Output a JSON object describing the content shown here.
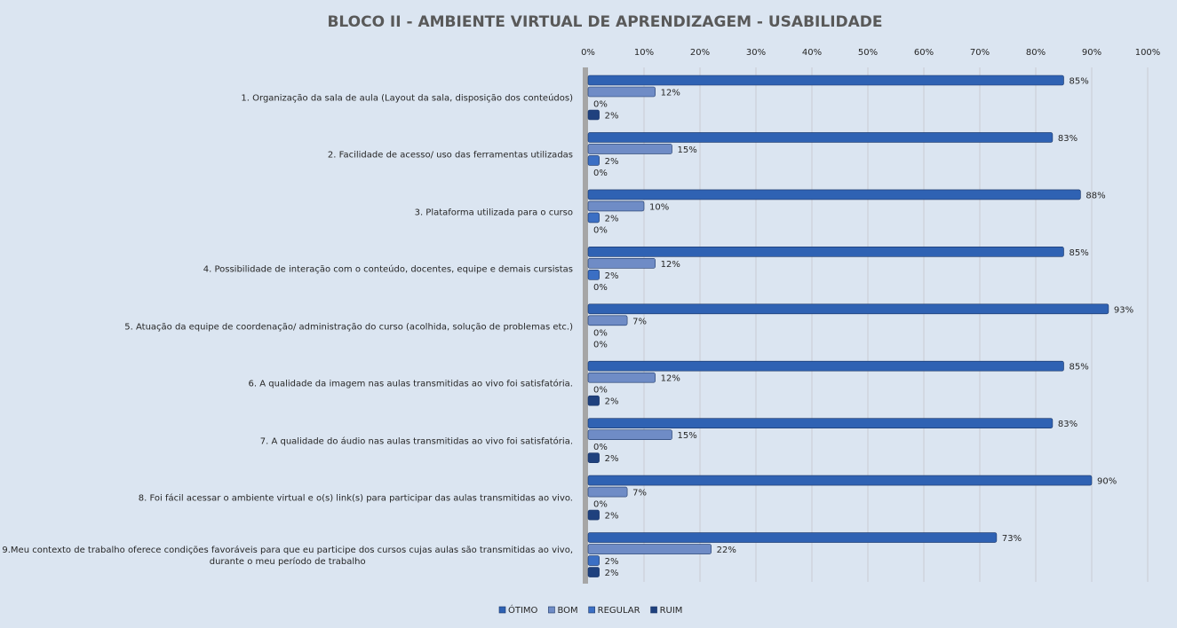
{
  "chart_data": {
    "type": "hbar",
    "title": "BLOCO II - AMBIENTE VIRTUAL DE APRENDIZAGEM - USABILIDADE",
    "categories": [
      "1. Organização da sala de aula (Layout da sala, disposição dos conteúdos)",
      "2. Facilidade de acesso/ uso das ferramentas utilizadas",
      "3. Plataforma utilizada para o curso",
      "4. Possibilidade de interação com o conteúdo, docentes, equipe e demais cursistas",
      "5. Atuação da equipe de coordenação/ administração do curso (acolhida, solução de problemas etc.)",
      "6. A qualidade da imagem nas aulas transmitidas ao vivo foi satisfatória.",
      "7. A qualidade do áudio nas aulas transmitidas ao vivo foi satisfatória.",
      "8. Foi fácil acessar o ambiente virtual e o(s) link(s) para participar das aulas transmitidas ao vivo.",
      "9.Meu contexto de trabalho oferece condições favoráveis para que eu participe dos cursos cujas aulas são transmitidas ao vivo,\ndurante o meu período de trabalho"
    ],
    "series": [
      {
        "name": "ÓTIMO",
        "color": "#2f62b3",
        "values": [
          85,
          83,
          88,
          85,
          93,
          85,
          83,
          90,
          73
        ],
        "value_labels": [
          "85%",
          "83%",
          "88%",
          "85%",
          "93%",
          "85%",
          "83%",
          "90%",
          "73%"
        ]
      },
      {
        "name": "BOM",
        "color": "#6f8cc6",
        "values": [
          12,
          15,
          10,
          12,
          7,
          12,
          15,
          7,
          22
        ],
        "value_labels": [
          "12%",
          "15%",
          "10%",
          "12%",
          "7%",
          "12%",
          "15%",
          "7%",
          "22%"
        ]
      },
      {
        "name": "REGULAR",
        "color": "#3b6fc4",
        "values": [
          0,
          2,
          2,
          2,
          0,
          0,
          0,
          0,
          2
        ],
        "value_labels": [
          "0%",
          "2%",
          "2%",
          "2%",
          "0%",
          "0%",
          "0%",
          "0%",
          "2%"
        ]
      },
      {
        "name": "RUIM",
        "color": "#1f417e",
        "values": [
          2,
          0,
          0,
          0,
          0,
          2,
          2,
          2,
          2
        ],
        "value_labels": [
          "2%",
          "0%",
          "0%",
          "0%",
          "0%",
          "2%",
          "2%",
          "2%",
          "2%"
        ]
      }
    ],
    "xlim": [
      0,
      100
    ],
    "xticks": [
      {
        "value": 0,
        "label": "0%"
      },
      {
        "value": 10,
        "label": "10%"
      },
      {
        "value": 20,
        "label": "20%"
      },
      {
        "value": 30,
        "label": "30%"
      },
      {
        "value": 40,
        "label": "40%"
      },
      {
        "value": 50,
        "label": "50%"
      },
      {
        "value": 60,
        "label": "60%"
      },
      {
        "value": 70,
        "label": "70%"
      },
      {
        "value": 80,
        "label": "80%"
      },
      {
        "value": 90,
        "label": "90%"
      },
      {
        "value": 100,
        "label": "100%"
      }
    ],
    "grid": true
  }
}
